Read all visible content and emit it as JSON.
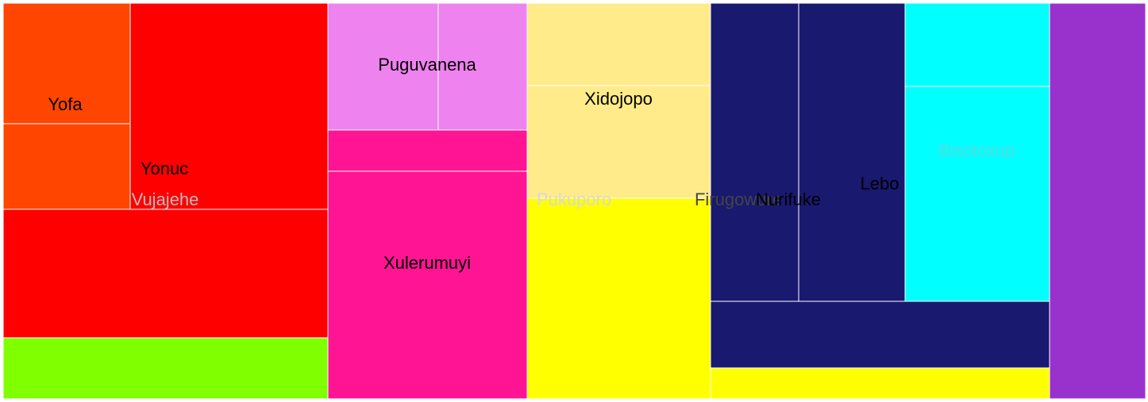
{
  "chart_data": {
    "type": "treemap",
    "title": "",
    "labels": [
      {
        "key": "yofa",
        "text": "Yofa",
        "color": "#000000"
      },
      {
        "key": "yonuc",
        "text": "Yonuc",
        "color": "#000000"
      },
      {
        "key": "vujajehe",
        "text": "Vujajehe",
        "color": "#bbbbbb"
      },
      {
        "key": "puguvanena",
        "text": "Puguvanena",
        "color": "#000000"
      },
      {
        "key": "xulerumuyi",
        "text": "Xulerumuyi",
        "color": "#000000"
      },
      {
        "key": "xidojopo",
        "text": "Xidojopo",
        "color": "#000000"
      },
      {
        "key": "pukuporo",
        "text": "Pukuporo",
        "color": "#d8d8d8"
      },
      {
        "key": "firugowure",
        "text": "Firugowure",
        "color": "#444444"
      },
      {
        "key": "nurifuke",
        "text": "Nurifuke",
        "color": "#000000"
      },
      {
        "key": "lebo",
        "text": "Lebo",
        "color": "#000000"
      },
      {
        "key": "bisotoxup",
        "text": "Bisotoxup",
        "color": "#55dddd"
      }
    ],
    "colors": {
      "orange": "#ff4500",
      "red": "#ff0000",
      "green": "#7fff00",
      "violet": "#ee82ee",
      "pink": "#ff1493",
      "khaki": "#ffeb8a",
      "yellow": "#ffff00",
      "navy": "#191970",
      "cyan": "#00ffff",
      "purple": "#9932cc"
    }
  }
}
